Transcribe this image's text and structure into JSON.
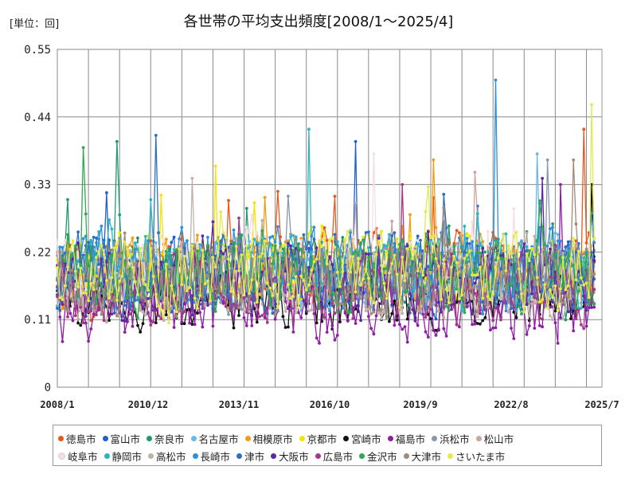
{
  "unit_label": "[単位：回]",
  "chart_data": {
    "type": "line",
    "title": "各世帯の平均支出頻度[2008/1～2025/4]",
    "xlabel": "",
    "ylabel": "",
    "ylim": [
      0,
      0.55
    ],
    "y_ticks": [
      "0",
      "0.11",
      "0.22",
      "0.33",
      "0.44",
      "0.55"
    ],
    "x_tick_labels": [
      "2008/1",
      "2010/12",
      "2013/11",
      "2016/10",
      "2019/9",
      "2022/8",
      "2025/7"
    ],
    "period": {
      "start": "2008/1",
      "end": "2025/4"
    },
    "grid": true,
    "legend_position": "bottom",
    "series": [
      {
        "name": "徳島市",
        "color": "#e8581c",
        "base": 0.19,
        "spread": 0.075,
        "peak": 0.42,
        "peak_at": "2024/12"
      },
      {
        "name": "富山市",
        "color": "#1f5fcf",
        "base": 0.18,
        "spread": 0.075,
        "peak": 0.4,
        "peak_at": "2017/8"
      },
      {
        "name": "奈良市",
        "color": "#1e9a6e",
        "base": 0.185,
        "spread": 0.07,
        "peak": 0.4,
        "peak_at": "2009/12"
      },
      {
        "name": "名古屋市",
        "color": "#6bb7e8",
        "base": 0.18,
        "spread": 0.07,
        "peak": 0.38,
        "peak_at": "2023/6"
      },
      {
        "name": "相模原市",
        "color": "#f39c12",
        "base": 0.19,
        "spread": 0.07,
        "peak": 0.37,
        "peak_at": "2020/2"
      },
      {
        "name": "京都市",
        "color": "#f5e400",
        "base": 0.195,
        "spread": 0.07,
        "peak": 0.36,
        "peak_at": "2013/2"
      },
      {
        "name": "宮崎市",
        "color": "#111111",
        "base": 0.14,
        "spread": 0.06,
        "peak": 0.33,
        "peak_at": "2025/3"
      },
      {
        "name": "福島市",
        "color": "#8e1fa3",
        "base": 0.13,
        "spread": 0.07,
        "peak": 0.33,
        "peak_at": "2024/3"
      },
      {
        "name": "浜松市",
        "color": "#8898aa",
        "base": 0.18,
        "spread": 0.07,
        "peak": 0.37,
        "peak_at": "2023/10"
      },
      {
        "name": "松山市",
        "color": "#c9a79c",
        "base": 0.175,
        "spread": 0.075,
        "peak": 0.35,
        "peak_at": "2021/6"
      },
      {
        "name": "岐阜市",
        "color": "#f2dfe6",
        "base": 0.19,
        "spread": 0.07,
        "peak": 0.38,
        "peak_at": "2018/3"
      },
      {
        "name": "静岡市",
        "color": "#2fb3c4",
        "base": 0.185,
        "spread": 0.075,
        "peak": 0.42,
        "peak_at": "2016/2"
      },
      {
        "name": "高松市",
        "color": "#bdb3a8",
        "base": 0.17,
        "spread": 0.07,
        "peak": 0.34,
        "peak_at": "2012/5"
      },
      {
        "name": "長崎市",
        "color": "#2e8fdc",
        "base": 0.19,
        "spread": 0.08,
        "peak": 0.5,
        "peak_at": "2022/2"
      },
      {
        "name": "津市",
        "color": "#2f6fbf",
        "base": 0.185,
        "spread": 0.08,
        "peak": 0.41,
        "peak_at": "2011/3"
      },
      {
        "name": "大阪市",
        "color": "#5a2aa0",
        "base": 0.17,
        "spread": 0.07,
        "peak": 0.34,
        "peak_at": "2023/8"
      },
      {
        "name": "広島市",
        "color": "#a23a8c",
        "base": 0.16,
        "spread": 0.07,
        "peak": 0.33,
        "peak_at": "2019/2"
      },
      {
        "name": "金沢市",
        "color": "#2fa84f",
        "base": 0.18,
        "spread": 0.075,
        "peak": 0.39,
        "peak_at": "2008/11"
      },
      {
        "name": "大津市",
        "color": "#a08b7a",
        "base": 0.175,
        "spread": 0.07,
        "peak": 0.37,
        "peak_at": "2024/8"
      },
      {
        "name": "さいたま市",
        "color": "#e4ea4b",
        "base": 0.185,
        "spread": 0.075,
        "peak": 0.46,
        "peak_at": "2025/3"
      }
    ]
  }
}
